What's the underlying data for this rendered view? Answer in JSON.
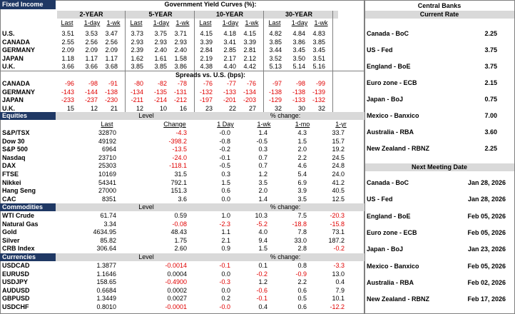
{
  "fixed_income": {
    "title": "Fixed Income",
    "heading": "Government Yield Curves (%):",
    "tenors": [
      "2-YEAR",
      "5-YEAR",
      "10-YEAR",
      "30-YEAR"
    ],
    "columns": [
      "Last",
      "1-day",
      "1-wk"
    ],
    "yields": [
      {
        "label": "U.S.",
        "values": [
          "3.51",
          "3.53",
          "3.47",
          "3.73",
          "3.75",
          "3.71",
          "4.15",
          "4.18",
          "4.15",
          "4.82",
          "4.84",
          "4.83"
        ]
      },
      {
        "label": "CANADA",
        "values": [
          "2.55",
          "2.56",
          "2.56",
          "2.93",
          "2.93",
          "2.93",
          "3.39",
          "3.41",
          "3.39",
          "3.85",
          "3.86",
          "3.85"
        ]
      },
      {
        "label": "GERMANY",
        "values": [
          "2.09",
          "2.09",
          "2.09",
          "2.39",
          "2.40",
          "2.40",
          "2.84",
          "2.85",
          "2.81",
          "3.44",
          "3.45",
          "3.45"
        ]
      },
      {
        "label": "JAPAN",
        "values": [
          "1.18",
          "1.17",
          "1.17",
          "1.62",
          "1.61",
          "1.58",
          "2.19",
          "2.17",
          "2.12",
          "3.52",
          "3.50",
          "3.51"
        ]
      },
      {
        "label": "U.K.",
        "values": [
          "3.66",
          "3.66",
          "3.68",
          "3.85",
          "3.85",
          "3.86",
          "4.38",
          "4.40",
          "4.42",
          "5.13",
          "5.14",
          "5.16"
        ]
      }
    ],
    "spreads_heading": "Spreads vs. U.S. (bps):",
    "spreads": [
      {
        "label": "CANADA",
        "values": [
          "-96",
          "-98",
          "-91",
          "-80",
          "-82",
          "-78",
          "-76",
          "-77",
          "-76",
          "-97",
          "-98",
          "-99"
        ]
      },
      {
        "label": "GERMANY",
        "values": [
          "-143",
          "-144",
          "-138",
          "-134",
          "-135",
          "-131",
          "-132",
          "-133",
          "-134",
          "-138",
          "-138",
          "-139"
        ]
      },
      {
        "label": "JAPAN",
        "values": [
          "-233",
          "-237",
          "-230",
          "-211",
          "-214",
          "-212",
          "-197",
          "-201",
          "-203",
          "-129",
          "-133",
          "-132"
        ]
      },
      {
        "label": "U.K.",
        "values": [
          "15",
          "12",
          "21",
          "12",
          "10",
          "16",
          "23",
          "22",
          "27",
          "32",
          "30",
          "32"
        ]
      }
    ]
  },
  "equities": {
    "title": "Equities",
    "level_heading": "Level",
    "change_heading": "% change:",
    "columns": [
      "Last",
      "Change",
      "1 Day",
      "1-wk",
      "1-mo",
      "1-yr"
    ],
    "rows": [
      {
        "label": "S&P/TSX",
        "values": [
          "32870",
          "-4.3",
          "-0.0",
          "1.4",
          "4.3",
          "33.7"
        ]
      },
      {
        "label": "Dow 30",
        "values": [
          "49192",
          "-398.2",
          "-0.8",
          "-0.5",
          "1.5",
          "15.7"
        ]
      },
      {
        "label": "S&P 500",
        "values": [
          "6964",
          "-13.5",
          "-0.2",
          "0.3",
          "2.0",
          "19.2"
        ]
      },
      {
        "label": "Nasdaq",
        "values": [
          "23710",
          "-24.0",
          "-0.1",
          "0.7",
          "2.2",
          "24.5"
        ]
      },
      {
        "label": "DAX",
        "values": [
          "25303",
          "-118.1",
          "-0.5",
          "0.7",
          "4.6",
          "24.8"
        ]
      },
      {
        "label": "FTSE",
        "values": [
          "10169",
          "31.5",
          "0.3",
          "1.2",
          "5.4",
          "24.0"
        ]
      },
      {
        "label": "Nikkei",
        "values": [
          "54341",
          "792.1",
          "1.5",
          "3.5",
          "6.9",
          "41.2"
        ]
      },
      {
        "label": "Hang Seng",
        "values": [
          "27000",
          "151.3",
          "0.6",
          "2.0",
          "3.9",
          "40.5"
        ]
      },
      {
        "label": "CAC",
        "values": [
          "8351",
          "3.6",
          "0.0",
          "1.4",
          "3.5",
          "12.5"
        ]
      }
    ]
  },
  "commodities": {
    "title": "Commodities",
    "level_heading": "Level",
    "change_heading": "% change:",
    "rows": [
      {
        "label": "WTI Crude",
        "values": [
          "61.74",
          "0.59",
          "1.0",
          "10.3",
          "7.5",
          "-20.3"
        ]
      },
      {
        "label": "Natural Gas",
        "values": [
          "3.34",
          "-0.08",
          "-2.3",
          "-5.2",
          "-18.8",
          "-15.8"
        ]
      },
      {
        "label": "Gold",
        "values": [
          "4634.95",
          "48.43",
          "1.1",
          "4.0",
          "7.8",
          "73.1"
        ]
      },
      {
        "label": "Silver",
        "values": [
          "85.82",
          "1.75",
          "2.1",
          "9.4",
          "33.0",
          "187.2"
        ]
      },
      {
        "label": "CRB Index",
        "values": [
          "306.64",
          "2.60",
          "0.9",
          "1.5",
          "2.8",
          "-0.2"
        ]
      }
    ]
  },
  "currencies": {
    "title": "Currencies",
    "level_heading": "Level",
    "change_heading": "% change:",
    "rows": [
      {
        "label": "USDCAD",
        "values": [
          "1.3877",
          "-0.0014",
          "-0.1",
          "0.1",
          "0.8",
          "-3.3"
        ]
      },
      {
        "label": "EURUSD",
        "values": [
          "1.1646",
          "0.0004",
          "0.0",
          "-0.2",
          "-0.9",
          "13.0"
        ]
      },
      {
        "label": "USDJPY",
        "values": [
          "158.65",
          "-0.4900",
          "-0.3",
          "1.2",
          "2.2",
          "0.4"
        ]
      },
      {
        "label": "AUDUSD",
        "values": [
          "0.6684",
          "0.0002",
          "0.0",
          "-0.6",
          "0.6",
          "7.9"
        ]
      },
      {
        "label": "GBPUSD",
        "values": [
          "1.3449",
          "0.0027",
          "0.2",
          "-0.1",
          "0.5",
          "10.1"
        ]
      },
      {
        "label": "USDCHF",
        "values": [
          "0.8010",
          "-0.0001",
          "-0.0",
          "0.4",
          "0.6",
          "-12.2"
        ]
      }
    ]
  },
  "central_banks": {
    "title": "Central Banks",
    "current_rate_heading": "Current Rate",
    "rates": [
      {
        "bank": "Canada - BoC",
        "rate": "2.25"
      },
      {
        "bank": "US - Fed",
        "rate": "3.75"
      },
      {
        "bank": "England - BoE",
        "rate": "3.75"
      },
      {
        "bank": "Euro zone - ECB",
        "rate": "2.15"
      },
      {
        "bank": "Japan - BoJ",
        "rate": "0.75"
      },
      {
        "bank": "Mexico - Banxico",
        "rate": "7.00"
      },
      {
        "bank": "Australia - RBA",
        "rate": "3.60"
      },
      {
        "bank": "New Zealand - RBNZ",
        "rate": "2.25"
      }
    ],
    "meeting_heading": "Next Meeting Date",
    "meetings": [
      {
        "bank": "Canada - BoC",
        "date": "Jan 28, 2026"
      },
      {
        "bank": "US - Fed",
        "date": "Jan 28, 2026"
      },
      {
        "bank": "England - BoE",
        "date": "Feb 05, 2026"
      },
      {
        "bank": "Euro zone - ECB",
        "date": "Feb 05, 2026"
      },
      {
        "bank": "Japan - BoJ",
        "date": "Jan 23, 2026"
      },
      {
        "bank": "Mexico - Banxico",
        "date": "Feb 05, 2026"
      },
      {
        "bank": "Australia - RBA",
        "date": "Feb 02, 2026"
      },
      {
        "bank": "New Zealand - RBNZ",
        "date": "Feb 17, 2026"
      }
    ]
  }
}
